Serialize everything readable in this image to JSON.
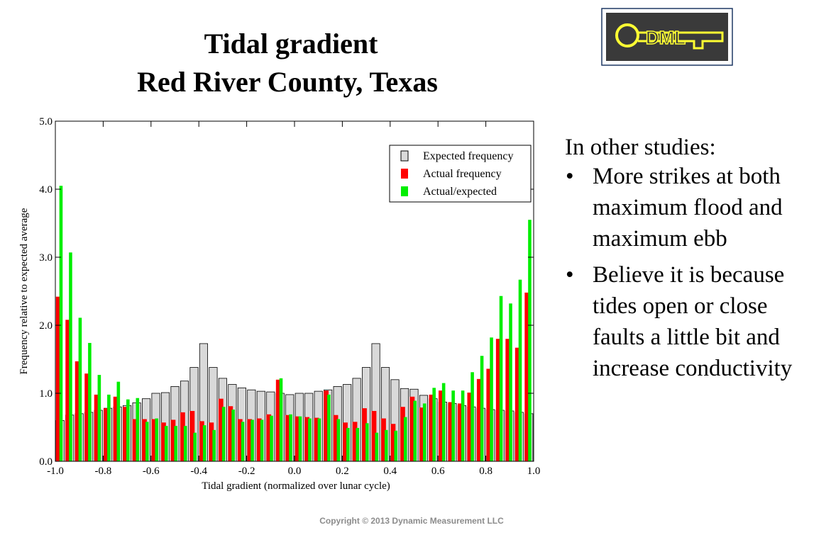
{
  "header": {
    "title": [
      "Tidal gradient",
      "Red River County, Texas"
    ]
  },
  "logo": {
    "text": "DML"
  },
  "chart_data": {
    "type": "histogram",
    "xlabel": "Tidal gradient (normalized over lunar cycle)",
    "ylabel": "Frequency relative to expected average",
    "bins": [
      -1,
      -0.96,
      -0.92,
      -0.88,
      -0.84,
      -0.8,
      -0.76,
      -0.72,
      -0.68,
      -0.64,
      -0.6,
      -0.56,
      -0.52,
      -0.48,
      -0.44,
      -0.4,
      -0.36,
      -0.32,
      -0.28,
      -0.24,
      -0.2,
      -0.16,
      -0.12,
      -0.08,
      -0.04,
      0,
      0.04,
      0.08,
      0.12,
      0.16,
      0.2,
      0.24,
      0.28,
      0.32,
      0.36,
      0.4,
      0.44,
      0.48,
      0.52,
      0.56,
      0.6,
      0.64,
      0.68,
      0.72,
      0.76,
      0.8,
      0.84,
      0.88,
      0.92,
      0.96,
      1
    ],
    "series": [
      {
        "name": "Expected frequency",
        "color": "#d9d9d9",
        "values": [
          0.6,
          0.68,
          0.7,
          0.72,
          0.75,
          0.78,
          0.8,
          0.82,
          0.86,
          0.92,
          1.0,
          1.01,
          1.1,
          1.18,
          1.38,
          1.73,
          1.38,
          1.22,
          1.13,
          1.08,
          1.05,
          1.03,
          1.02,
          1.0,
          0.98,
          1.0,
          1.0,
          1.03,
          1.05,
          1.1,
          1.13,
          1.22,
          1.38,
          1.73,
          1.38,
          1.2,
          1.07,
          1.06,
          0.97,
          0.92,
          0.87,
          0.85,
          0.82,
          0.8,
          0.78,
          0.76,
          0.75,
          0.74,
          0.72,
          0.7
        ]
      },
      {
        "name": "Actual frequency",
        "color": "#ff0000",
        "values": [
          2.42,
          2.08,
          1.47,
          1.29,
          0.98,
          0.78,
          0.95,
          0.8,
          0.62,
          0.62,
          0.62,
          0.57,
          0.61,
          0.72,
          0.74,
          0.59,
          0.57,
          0.92,
          0.81,
          0.62,
          0.62,
          0.63,
          0.69,
          1.2,
          0.68,
          0.66,
          0.65,
          0.64,
          1.04,
          0.68,
          0.57,
          0.58,
          0.78,
          0.74,
          0.63,
          0.55,
          0.8,
          0.95,
          0.79,
          0.98,
          1.04,
          0.87,
          0.85,
          1.01,
          1.21,
          1.36,
          1.8,
          1.8,
          1.67,
          2.48
        ]
      },
      {
        "name": "Actual/expected",
        "color": "#00ee00",
        "values": [
          4.05,
          3.07,
          2.11,
          1.74,
          1.27,
          0.98,
          1.17,
          0.91,
          0.93,
          0.58,
          0.63,
          0.52,
          0.52,
          0.52,
          0.42,
          0.53,
          0.46,
          0.8,
          0.76,
          0.58,
          0.61,
          0.61,
          0.67,
          1.22,
          0.69,
          0.66,
          0.63,
          0.63,
          0.98,
          0.62,
          0.49,
          0.49,
          0.56,
          0.42,
          0.46,
          0.45,
          0.65,
          0.89,
          0.85,
          1.08,
          1.15,
          1.04,
          1.04,
          1.31,
          1.55,
          1.82,
          2.43,
          2.32,
          2.67,
          3.55
        ]
      }
    ],
    "xlim": [
      -1,
      1
    ],
    "ylim": [
      0,
      5
    ],
    "xticks": [
      {
        "value": -1,
        "label": "-1.0"
      },
      {
        "value": -0.8,
        "label": "-0.8"
      },
      {
        "value": -0.6,
        "label": "-0.6"
      },
      {
        "value": -0.4,
        "label": "-0.4"
      },
      {
        "value": -0.2,
        "label": "-0.2"
      },
      {
        "value": 0,
        "label": "0.0"
      },
      {
        "value": 0.2,
        "label": "0.2"
      },
      {
        "value": 0.4,
        "label": "0.4"
      },
      {
        "value": 0.6,
        "label": "0.6"
      },
      {
        "value": 0.8,
        "label": "0.8"
      },
      {
        "value": 1,
        "label": "1.0"
      }
    ],
    "yticks": [
      {
        "value": 0,
        "label": "0.0"
      },
      {
        "value": 1,
        "label": "1.0"
      },
      {
        "value": 2,
        "label": "2.0"
      },
      {
        "value": 3,
        "label": "3.0"
      },
      {
        "value": 4,
        "label": "4.0"
      },
      {
        "value": 5,
        "label": "5.0"
      }
    ],
    "legend": "upper right"
  },
  "notes": {
    "heading": "In other studies:",
    "bullets": [
      [
        "More strikes at both",
        "maximum flood and",
        "maximum ebb"
      ],
      [
        "Believe it is because",
        "tides open or close",
        "faults a little bit and",
        "increase conductivity"
      ]
    ]
  },
  "footer": {
    "copyright": "Copyright © 2013 Dynamic Measurement LLC"
  }
}
